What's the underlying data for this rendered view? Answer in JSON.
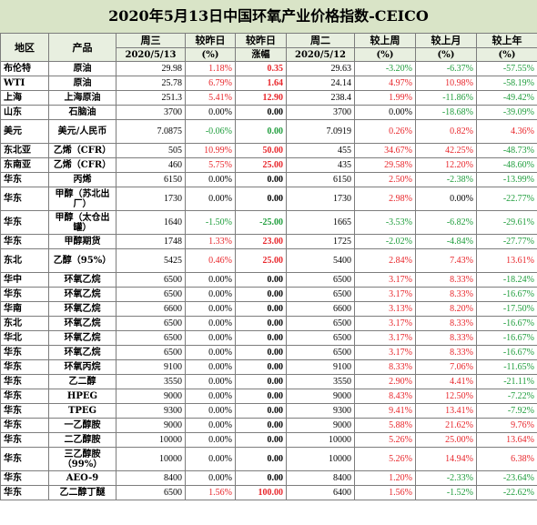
{
  "title": "2020年5月13日中国环氧产业价格指数-CEICO",
  "header": {
    "row1": [
      "地区",
      "产品",
      "周三",
      "较昨日",
      "较昨日",
      "周二",
      "较上周",
      "较上月",
      "较上年"
    ],
    "row2": [
      "2020/5/13",
      "(%)",
      "涨幅",
      "2020/5/12",
      "(%)",
      "(%)",
      "(%)"
    ]
  },
  "colors": {
    "up": "#e8262b",
    "down": "#1f9d3c",
    "header_bg": "#e8efe0",
    "title_bg": "#d9e4c7"
  },
  "rows": [
    {
      "region": "布伦特",
      "product": "原油",
      "wed": "29.98",
      "dpct": "1.18%",
      "dabs": "0.35",
      "tue": "29.63",
      "wk": "-3.20%",
      "mo": "-6.37%",
      "yr": "-57.55%",
      "c": [
        "r",
        "r",
        "g",
        "g",
        "g"
      ]
    },
    {
      "region": "WTI",
      "product": "原油",
      "wed": "25.78",
      "dpct": "6.79%",
      "dabs": "1.64",
      "tue": "24.14",
      "wk": "4.97%",
      "mo": "10.98%",
      "yr": "-58.19%",
      "c": [
        "r",
        "r",
        "r",
        "r",
        "g"
      ]
    },
    {
      "region": "上海",
      "product": "上海原油",
      "wed": "251.3",
      "dpct": "5.41%",
      "dabs": "12.90",
      "tue": "238.4",
      "wk": "1.99%",
      "mo": "-11.86%",
      "yr": "-49.42%",
      "c": [
        "r",
        "r",
        "r",
        "g",
        "g"
      ]
    },
    {
      "region": "山东",
      "product": "石脑油",
      "wed": "3700",
      "dpct": "0.00%",
      "dabs": "0.00",
      "tue": "3700",
      "wk": "0.00%",
      "mo": "-18.68%",
      "yr": "-39.09%",
      "c": [
        "k",
        "k",
        "k",
        "g",
        "g"
      ]
    },
    {
      "region": "美元",
      "product": "美元/人民币",
      "wed": "7.0875",
      "dpct": "-0.06%",
      "dabs": "0.00",
      "tue": "7.0919",
      "wk": "0.26%",
      "mo": "0.82%",
      "yr": "4.36%",
      "c": [
        "g",
        "g",
        "r",
        "r",
        "r"
      ]
    },
    {
      "region": "东北亚",
      "product": "乙烯（CFR）",
      "wed": "505",
      "dpct": "10.99%",
      "dabs": "50.00",
      "tue": "455",
      "wk": "34.67%",
      "mo": "42.25%",
      "yr": "-48.73%",
      "c": [
        "r",
        "r",
        "r",
        "r",
        "g"
      ]
    },
    {
      "region": "东南亚",
      "product": "乙烯（CFR）",
      "wed": "460",
      "dpct": "5.75%",
      "dabs": "25.00",
      "tue": "435",
      "wk": "29.58%",
      "mo": "12.20%",
      "yr": "-48.60%",
      "c": [
        "r",
        "r",
        "r",
        "r",
        "g"
      ]
    },
    {
      "region": "华东",
      "product": "丙烯",
      "wed": "6150",
      "dpct": "0.00%",
      "dabs": "0.00",
      "tue": "6150",
      "wk": "2.50%",
      "mo": "-2.38%",
      "yr": "-13.99%",
      "c": [
        "k",
        "k",
        "r",
        "g",
        "g"
      ]
    },
    {
      "region": "华东",
      "product": "甲醇（苏北出厂）",
      "wed": "1730",
      "dpct": "0.00%",
      "dabs": "0.00",
      "tue": "1730",
      "wk": "2.98%",
      "mo": "0.00%",
      "yr": "-22.77%",
      "c": [
        "k",
        "k",
        "r",
        "k",
        "g"
      ]
    },
    {
      "region": "华东",
      "product": "甲醇（太仓出罐）",
      "wed": "1640",
      "dpct": "-1.50%",
      "dabs": "-25.00",
      "tue": "1665",
      "wk": "-3.53%",
      "mo": "-6.82%",
      "yr": "-29.61%",
      "c": [
        "g",
        "g",
        "g",
        "g",
        "g"
      ]
    },
    {
      "region": "华东",
      "product": "甲醇期货",
      "wed": "1748",
      "dpct": "1.33%",
      "dabs": "23.00",
      "tue": "1725",
      "wk": "-2.02%",
      "mo": "-4.84%",
      "yr": "-27.77%",
      "c": [
        "r",
        "r",
        "g",
        "g",
        "g"
      ]
    },
    {
      "region": "东北",
      "product": "乙醇（95%）",
      "wed": "5425",
      "dpct": "0.46%",
      "dabs": "25.00",
      "tue": "5400",
      "wk": "2.84%",
      "mo": "7.43%",
      "yr": "13.61%",
      "c": [
        "r",
        "r",
        "r",
        "r",
        "r"
      ]
    },
    {
      "region": "华中",
      "product": "环氧乙烷",
      "wed": "6500",
      "dpct": "0.00%",
      "dabs": "0.00",
      "tue": "6500",
      "wk": "3.17%",
      "mo": "8.33%",
      "yr": "-18.24%",
      "c": [
        "k",
        "k",
        "r",
        "r",
        "g"
      ]
    },
    {
      "region": "华东",
      "product": "环氧乙烷",
      "wed": "6500",
      "dpct": "0.00%",
      "dabs": "0.00",
      "tue": "6500",
      "wk": "3.17%",
      "mo": "8.33%",
      "yr": "-16.67%",
      "c": [
        "k",
        "k",
        "r",
        "r",
        "g"
      ]
    },
    {
      "region": "华南",
      "product": "环氧乙烷",
      "wed": "6600",
      "dpct": "0.00%",
      "dabs": "0.00",
      "tue": "6600",
      "wk": "3.13%",
      "mo": "8.20%",
      "yr": "-17.50%",
      "c": [
        "k",
        "k",
        "r",
        "r",
        "g"
      ]
    },
    {
      "region": "东北",
      "product": "环氧乙烷",
      "wed": "6500",
      "dpct": "0.00%",
      "dabs": "0.00",
      "tue": "6500",
      "wk": "3.17%",
      "mo": "8.33%",
      "yr": "-16.67%",
      "c": [
        "k",
        "k",
        "r",
        "r",
        "g"
      ]
    },
    {
      "region": "华北",
      "product": "环氧乙烷",
      "wed": "6500",
      "dpct": "0.00%",
      "dabs": "0.00",
      "tue": "6500",
      "wk": "3.17%",
      "mo": "8.33%",
      "yr": "-16.67%",
      "c": [
        "k",
        "k",
        "r",
        "r",
        "g"
      ]
    },
    {
      "region": "华东",
      "product": "环氧乙烷",
      "wed": "6500",
      "dpct": "0.00%",
      "dabs": "0.00",
      "tue": "6500",
      "wk": "3.17%",
      "mo": "8.33%",
      "yr": "-16.67%",
      "c": [
        "k",
        "k",
        "r",
        "r",
        "g"
      ]
    },
    {
      "region": "华东",
      "product": "环氧丙烷",
      "wed": "9100",
      "dpct": "0.00%",
      "dabs": "0.00",
      "tue": "9100",
      "wk": "8.33%",
      "mo": "7.06%",
      "yr": "-11.65%",
      "c": [
        "k",
        "k",
        "r",
        "r",
        "g"
      ]
    },
    {
      "region": "华东",
      "product": "乙二醇",
      "wed": "3550",
      "dpct": "0.00%",
      "dabs": "0.00",
      "tue": "3550",
      "wk": "2.90%",
      "mo": "4.41%",
      "yr": "-21.11%",
      "c": [
        "k",
        "k",
        "r",
        "r",
        "g"
      ]
    },
    {
      "region": "华东",
      "product": "HPEG",
      "wed": "9000",
      "dpct": "0.00%",
      "dabs": "0.00",
      "tue": "9000",
      "wk": "8.43%",
      "mo": "12.50%",
      "yr": "-7.22%",
      "c": [
        "k",
        "k",
        "r",
        "r",
        "g"
      ]
    },
    {
      "region": "华东",
      "product": "TPEG",
      "wed": "9300",
      "dpct": "0.00%",
      "dabs": "0.00",
      "tue": "9300",
      "wk": "9.41%",
      "mo": "13.41%",
      "yr": "-7.92%",
      "c": [
        "k",
        "k",
        "r",
        "r",
        "g"
      ]
    },
    {
      "region": "华东",
      "product": "一乙醇胺",
      "wed": "9000",
      "dpct": "0.00%",
      "dabs": "0.00",
      "tue": "9000",
      "wk": "5.88%",
      "mo": "21.62%",
      "yr": "9.76%",
      "c": [
        "k",
        "k",
        "r",
        "r",
        "r"
      ]
    },
    {
      "region": "华东",
      "product": "二乙醇胺",
      "wed": "10000",
      "dpct": "0.00%",
      "dabs": "0.00",
      "tue": "10000",
      "wk": "5.26%",
      "mo": "25.00%",
      "yr": "13.64%",
      "c": [
        "k",
        "k",
        "r",
        "r",
        "r"
      ]
    },
    {
      "region": "华东",
      "product": "三乙醇胺（99%）",
      "wed": "10000",
      "dpct": "0.00%",
      "dabs": "0.00",
      "tue": "10000",
      "wk": "5.26%",
      "mo": "14.94%",
      "yr": "6.38%",
      "c": [
        "k",
        "k",
        "r",
        "r",
        "r"
      ]
    },
    {
      "region": "华东",
      "product": "AEO-9",
      "wed": "8400",
      "dpct": "0.00%",
      "dabs": "0.00",
      "tue": "8400",
      "wk": "1.20%",
      "mo": "-2.33%",
      "yr": "-23.64%",
      "c": [
        "k",
        "k",
        "r",
        "g",
        "g"
      ]
    },
    {
      "region": "华东",
      "product": "乙二醇丁醚",
      "wed": "6500",
      "dpct": "1.56%",
      "dabs": "100.00",
      "tue": "6400",
      "wk": "1.56%",
      "mo": "-1.52%",
      "yr": "-22.62%",
      "c": [
        "r",
        "r",
        "r",
        "g",
        "g"
      ]
    }
  ]
}
